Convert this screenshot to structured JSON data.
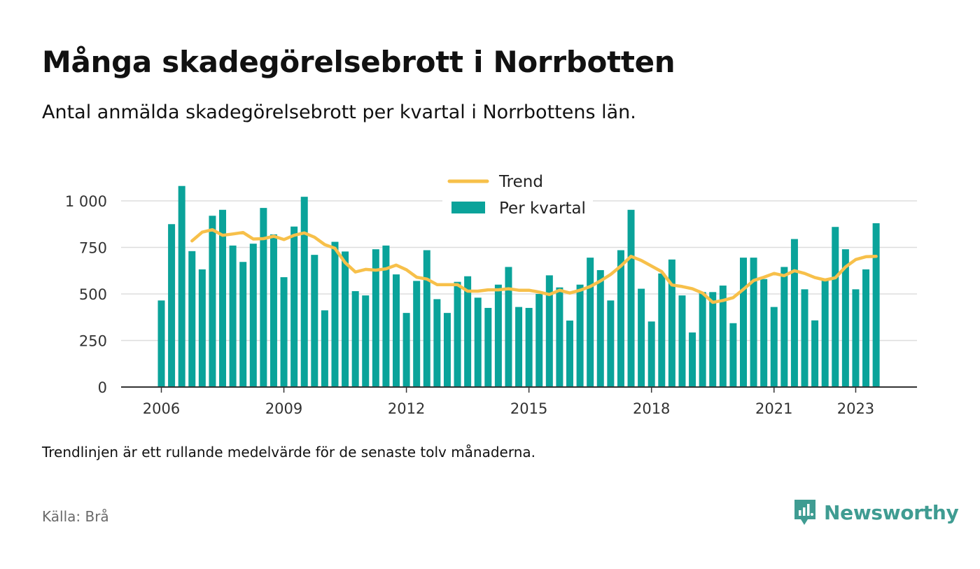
{
  "title": "Många skadegörelsebrott i Norrbotten",
  "subtitle": "Antal anmälda skadegörelsebrott per kvartal i Norrbottens län.",
  "note": "Trendlinjen är ett rullande medelvärde för de senaste tolv månaderna.",
  "source": "Källa: Brå",
  "brand": {
    "name": "Newsworthy",
    "icon": "newsworthy-logo-icon",
    "color": "#3f9c92"
  },
  "colors": {
    "bar": "#0aa39a",
    "trend": "#f7c04a",
    "grid": "#dddddd",
    "axis": "#333333"
  },
  "chart_data": {
    "type": "bar",
    "legend_placement": "top-center",
    "grid": true,
    "ylim": [
      0,
      1100
    ],
    "yticks": [
      0,
      250,
      500,
      750,
      1000
    ],
    "ytick_labels": [
      "0",
      "250",
      "500",
      "750",
      "1 000"
    ],
    "xticks": [
      2006,
      2009,
      2012,
      2015,
      2018,
      2021,
      2023
    ],
    "xtick_labels": [
      "2006",
      "2009",
      "2012",
      "2015",
      "2018",
      "2021",
      "2023"
    ],
    "x_start": 2006.0,
    "x_step": 0.25,
    "series": [
      {
        "name": "Per kvartal",
        "type": "bar",
        "values": [
          465,
          875,
          1080,
          730,
          632,
          920,
          952,
          760,
          672,
          770,
          962,
          820,
          590,
          862,
          1022,
          710,
          412,
          780,
          728,
          515,
          492,
          740,
          760,
          605,
          398,
          570,
          735,
          472,
          398,
          565,
          595,
          480,
          425,
          550,
          645,
          430,
          425,
          500,
          600,
          535,
          357,
          550,
          695,
          628,
          465,
          735,
          952,
          528,
          352,
          610,
          685,
          492,
          293,
          510,
          510,
          545,
          343,
          695,
          695,
          580,
          430,
          645,
          795,
          525,
          358,
          580,
          860,
          740,
          525,
          632,
          880
        ]
      },
      {
        "name": "Trend",
        "type": "line",
        "values": [
          null,
          null,
          null,
          785,
          832,
          845,
          815,
          822,
          830,
          795,
          797,
          810,
          792,
          815,
          828,
          805,
          765,
          745,
          668,
          618,
          632,
          628,
          635,
          655,
          630,
          590,
          580,
          550,
          550,
          550,
          515,
          515,
          522,
          522,
          528,
          520,
          520,
          510,
          497,
          520,
          505,
          520,
          540,
          570,
          605,
          650,
          702,
          680,
          650,
          620,
          548,
          540,
          528,
          505,
          455,
          465,
          480,
          525,
          572,
          590,
          610,
          598,
          625,
          610,
          588,
          575,
          587,
          645,
          685,
          700,
          702
        ]
      }
    ]
  }
}
